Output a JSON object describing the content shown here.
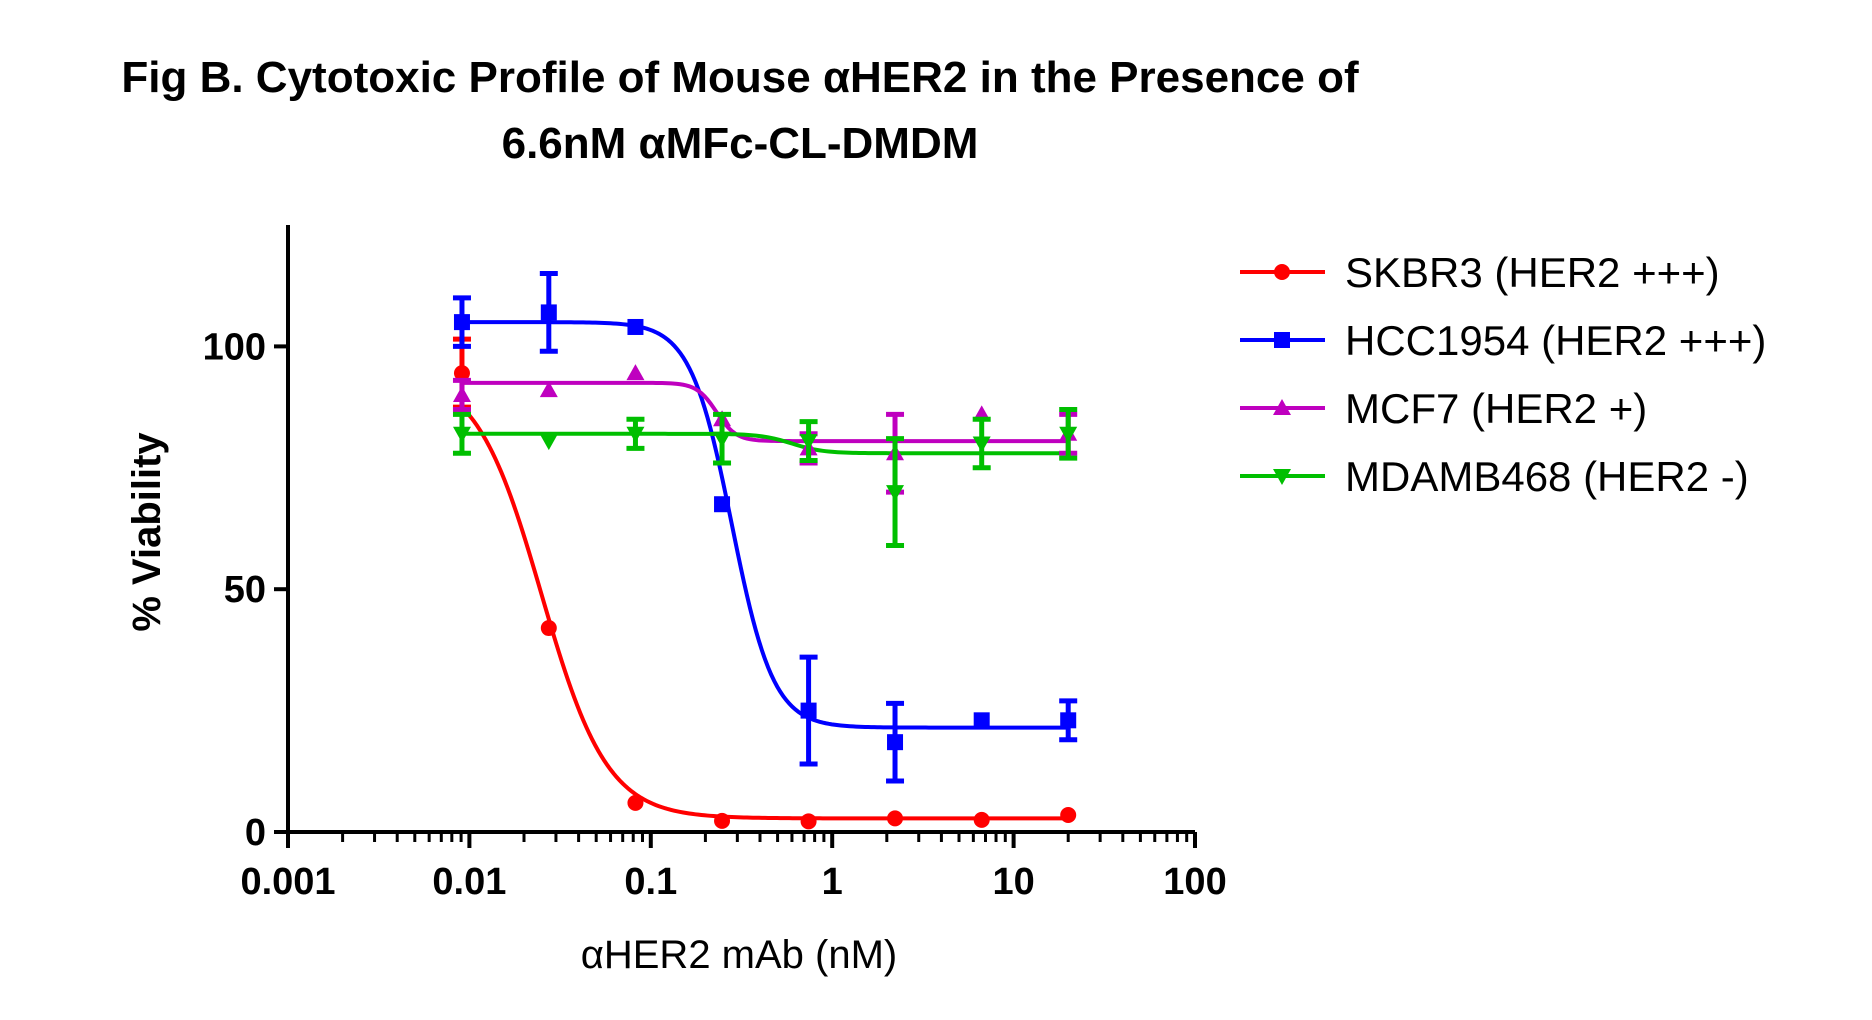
{
  "chart_data": {
    "type": "scatter",
    "title": "Fig B. Cytotoxic Profile of Mouse αHER2 in the Presence of",
    "subtitle": "6.6nM αMFc-CL-DMDM",
    "xlabel": "αHER2 mAb (nM)",
    "ylabel": "% Viability",
    "x_scale": "log",
    "xlim": [
      0.001,
      100
    ],
    "ylim": [
      0,
      125
    ],
    "x_ticks": [
      0.001,
      0.01,
      0.1,
      1,
      10,
      100
    ],
    "x_tick_labels": [
      "0.001",
      "0.01",
      "0.1",
      "1",
      "10",
      "100"
    ],
    "y_ticks": [
      0,
      50,
      100
    ],
    "y_tick_labels": [
      "0",
      "50",
      "100"
    ],
    "legend_position": "right",
    "grid": false,
    "series": [
      {
        "name": "SKBR3 (HER2 +++)",
        "color": "#ff0000",
        "marker": "circle",
        "x": [
          0.0091,
          0.0274,
          0.0823,
          0.247,
          0.741,
          2.22,
          6.67,
          20
        ],
        "y": [
          94.5,
          42,
          6,
          2.3,
          2.2,
          2.8,
          2.5,
          3.5
        ],
        "err": [
          7,
          0,
          0,
          0,
          0,
          0,
          0,
          0
        ],
        "fit": {
          "top": 95,
          "bottom": 2.8,
          "ec50": 0.025,
          "hill": 2.4
        }
      },
      {
        "name": "HCC1954 (HER2 +++)",
        "color": "#0000ff",
        "marker": "square",
        "x": [
          0.0091,
          0.0274,
          0.0823,
          0.247,
          0.741,
          2.22,
          6.67,
          20
        ],
        "y": [
          105,
          107,
          104,
          67.5,
          25,
          18.5,
          23,
          23
        ],
        "err": [
          5,
          8,
          0,
          0,
          11,
          8,
          0,
          4
        ],
        "fit": {
          "top": 105,
          "bottom": 21.5,
          "ec50": 0.28,
          "hill": 3.8
        }
      },
      {
        "name": "MCF7 (HER2 +)",
        "color": "#bf00bf",
        "marker": "triangle-up",
        "x": [
          0.0091,
          0.0274,
          0.0823,
          0.247,
          0.741,
          2.22,
          6.67,
          20
        ],
        "y": [
          90,
          91,
          94.5,
          85,
          79,
          78,
          86,
          82
        ],
        "err": [
          3,
          0,
          0,
          0,
          3,
          8,
          0,
          4
        ],
        "fit": {
          "top": 92.5,
          "bottom": 80.5,
          "ec50": 0.23,
          "hill": 8
        }
      },
      {
        "name": "MDAMB468 (HER2 -)",
        "color": "#00bf00",
        "marker": "triangle-down",
        "x": [
          0.0091,
          0.0274,
          0.0823,
          0.247,
          0.741,
          2.22,
          6.67,
          20
        ],
        "y": [
          82,
          80.5,
          82,
          81,
          80.5,
          70,
          80,
          82
        ],
        "err": [
          4,
          0,
          3,
          5,
          4,
          11,
          5,
          5
        ],
        "fit": {
          "top": 82,
          "bottom": 78,
          "ec50": 0.6,
          "hill": 5
        }
      }
    ]
  }
}
